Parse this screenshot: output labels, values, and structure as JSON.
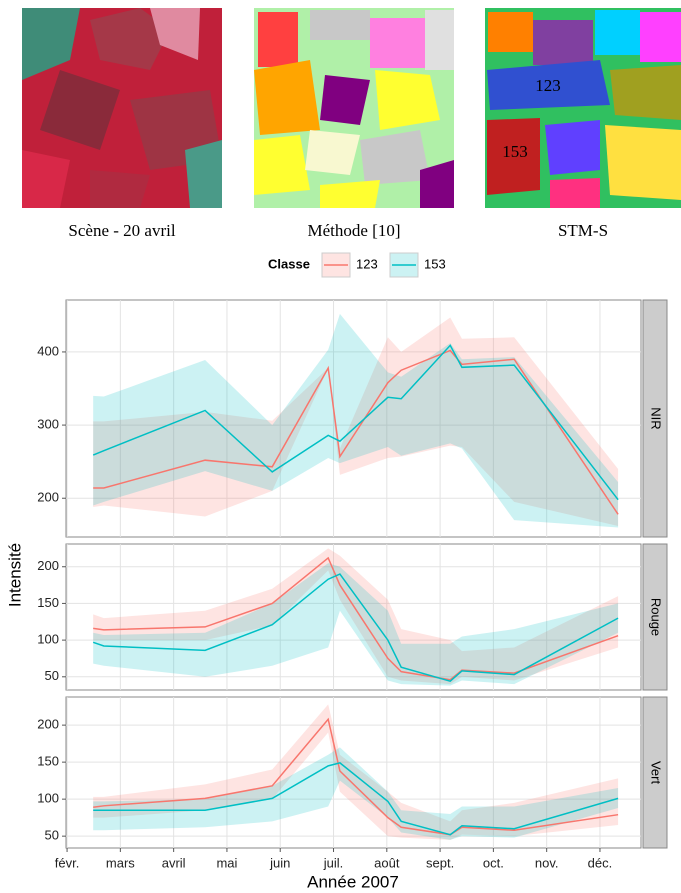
{
  "images": [
    {
      "caption": "Scène - 20 avril"
    },
    {
      "caption": "Méthode [10]"
    },
    {
      "caption": "STM-S",
      "labels": [
        "123",
        "153"
      ]
    }
  ],
  "chart_data": {
    "type": "line",
    "xlabel": "Année 2007",
    "ylabel": "Intensité",
    "legend_title": "Classe",
    "grid": true,
    "x": [
      2.49,
      2.69,
      4.59,
      5.85,
      6.9,
      7.12,
      8.02,
      8.27,
      9.19,
      9.41,
      10.39,
      12.34
    ],
    "xlim": [
      1.98,
      12.77
    ],
    "xticks": [
      {
        "value": 2,
        "label": "févr."
      },
      {
        "value": 3,
        "label": "mars"
      },
      {
        "value": 4,
        "label": "avril"
      },
      {
        "value": 5,
        "label": "mai"
      },
      {
        "value": 6,
        "label": "juin"
      },
      {
        "value": 7,
        "label": "juil."
      },
      {
        "value": 8,
        "label": "août"
      },
      {
        "value": 9,
        "label": "sept."
      },
      {
        "value": 10,
        "label": "oct."
      },
      {
        "value": 11,
        "label": "nov."
      },
      {
        "value": 12,
        "label": "déc."
      }
    ],
    "facets": [
      {
        "label": "NIR",
        "ylim": [
          147,
          471
        ],
        "yticks": [
          200,
          300,
          400
        ],
        "series": [
          {
            "name": "123",
            "color": "#F8766D",
            "values": [
              214,
              214,
              252,
              243,
              378,
              257,
              358,
              375,
              402,
              383,
              390,
              178
            ],
            "lower": [
              188,
              190,
              175,
              210,
              378,
              232,
              255,
              257,
              272,
              270,
              195,
              162
            ],
            "upper": [
              305,
              305,
              318,
              306,
              378,
              268,
              420,
              400,
              447,
              418,
              420,
              240
            ]
          },
          {
            "name": "153",
            "color": "#00BFC4",
            "values": [
              259,
              265,
              320,
              236,
              286,
              278,
              338,
              336,
              409,
              379,
              382,
              198
            ],
            "lower": [
              190,
              195,
              237,
              210,
              255,
              248,
              270,
              258,
              275,
              268,
              170,
              160
            ],
            "upper": [
              340,
              339,
              389,
              300,
              403,
              452,
              372,
              366,
              412,
              390,
              393,
              222
            ]
          }
        ]
      },
      {
        "label": "Rouge",
        "ylim": [
          32,
          231
        ],
        "yticks": [
          50,
          100,
          150,
          200
        ],
        "series": [
          {
            "name": "123",
            "color": "#F8766D",
            "values": [
              116,
              114,
              118,
              150,
              212,
              175,
              75,
              57,
              46,
              59,
              55,
              106
            ],
            "lower": [
              100,
              100,
              100,
              120,
              195,
              155,
              50,
              45,
              40,
              50,
              45,
              90
            ],
            "upper": [
              135,
              130,
              140,
              170,
              225,
              215,
              155,
              115,
              100,
              85,
              90,
              160
            ]
          },
          {
            "name": "153",
            "color": "#00BFC4",
            "values": [
              97,
              92,
              86,
              121,
              183,
              190,
              100,
              63,
              44,
              58,
              53,
              130
            ],
            "lower": [
              68,
              65,
              50,
              65,
              90,
              140,
              45,
              40,
              38,
              45,
              40,
              110
            ],
            "upper": [
              110,
              107,
              110,
              150,
              205,
              200,
              140,
              95,
              95,
              105,
              115,
              150
            ]
          }
        ]
      },
      {
        "label": "Vert",
        "ylim": [
          34,
          238
        ],
        "yticks": [
          50,
          100,
          150,
          200
        ],
        "series": [
          {
            "name": "123",
            "color": "#F8766D",
            "values": [
              89,
              91,
              101,
              118,
              208,
              138,
              75,
              62,
              52,
              62,
              58,
              79
            ],
            "lower": [
              75,
              75,
              85,
              100,
              190,
              110,
              50,
              48,
              45,
              52,
              50,
              65
            ],
            "upper": [
              103,
              103,
              120,
              140,
              228,
              160,
              110,
              95,
              70,
              85,
              95,
              128
            ]
          },
          {
            "name": "153",
            "color": "#00BFC4",
            "values": [
              85,
              85,
              85,
              101,
              145,
              149,
              97,
              70,
              52,
              64,
              60,
              101
            ],
            "lower": [
              58,
              58,
              62,
              70,
              90,
              125,
              75,
              55,
              45,
              50,
              48,
              88
            ],
            "upper": [
              97,
              97,
              100,
              118,
              160,
              170,
              110,
              85,
              80,
              90,
              90,
              115
            ]
          }
        ]
      }
    ]
  }
}
